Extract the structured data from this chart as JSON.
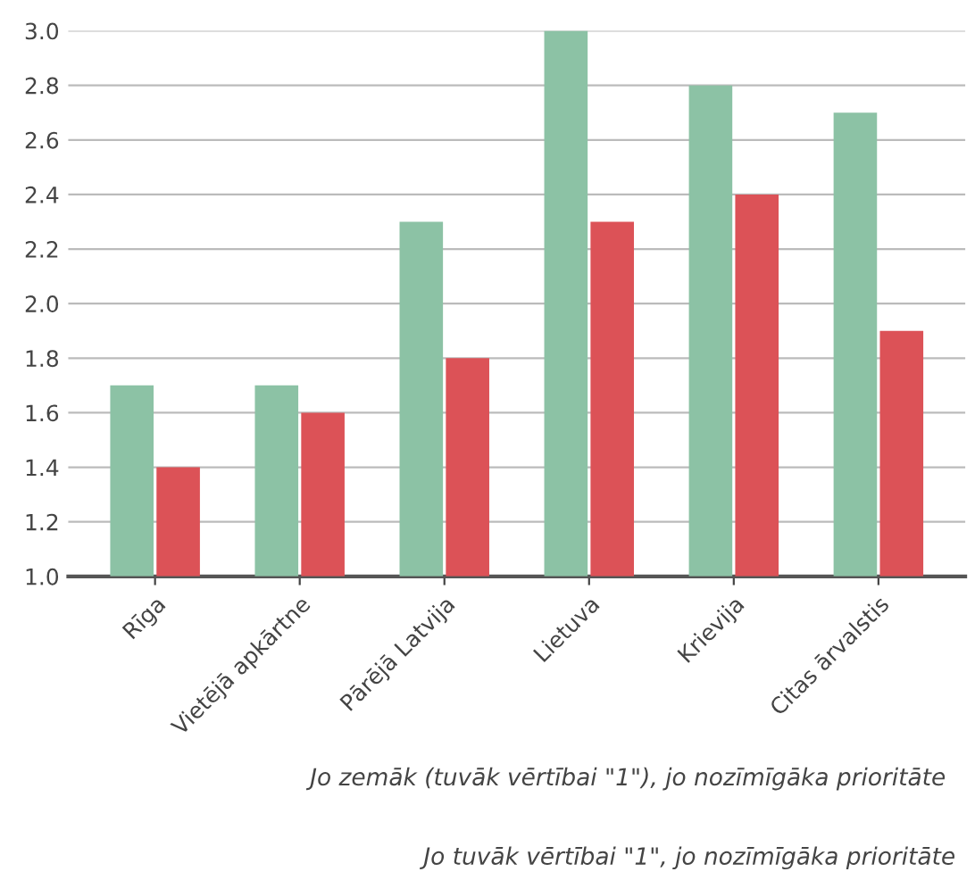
{
  "chart_data": {
    "type": "bar",
    "categories": [
      "Rīga",
      "Vietējā apkārtne",
      "Pārējā Latvija",
      "Lietuva",
      "Krievija",
      "Citas ārvalstis"
    ],
    "series": [
      {
        "color": "#8cc2a5",
        "values": [
          1.7,
          1.7,
          2.3,
          3.0,
          2.8,
          2.7
        ]
      },
      {
        "color": "#dc5257",
        "values": [
          1.4,
          1.6,
          1.8,
          2.3,
          2.4,
          1.9
        ]
      }
    ],
    "ylim": [
      1.0,
      3.0
    ],
    "yticks": [
      {
        "value": 1.0,
        "label": "1.0"
      },
      1.2,
      1.4,
      1.6,
      1.8,
      {
        "value": 2.0,
        "label": "2.0"
      },
      2.2,
      2.4,
      2.6,
      2.8,
      {
        "value": 3.0,
        "label": "3.0"
      }
    ],
    "grid": "y",
    "annotations": [
      "Jo zemāk (tuvāk vērtībai \"1\"), jo nozīmīgāka prioritāte",
      "Jo tuvāk vērtībai \"1\", jo nozīmīgāka prioritāte"
    ]
  }
}
